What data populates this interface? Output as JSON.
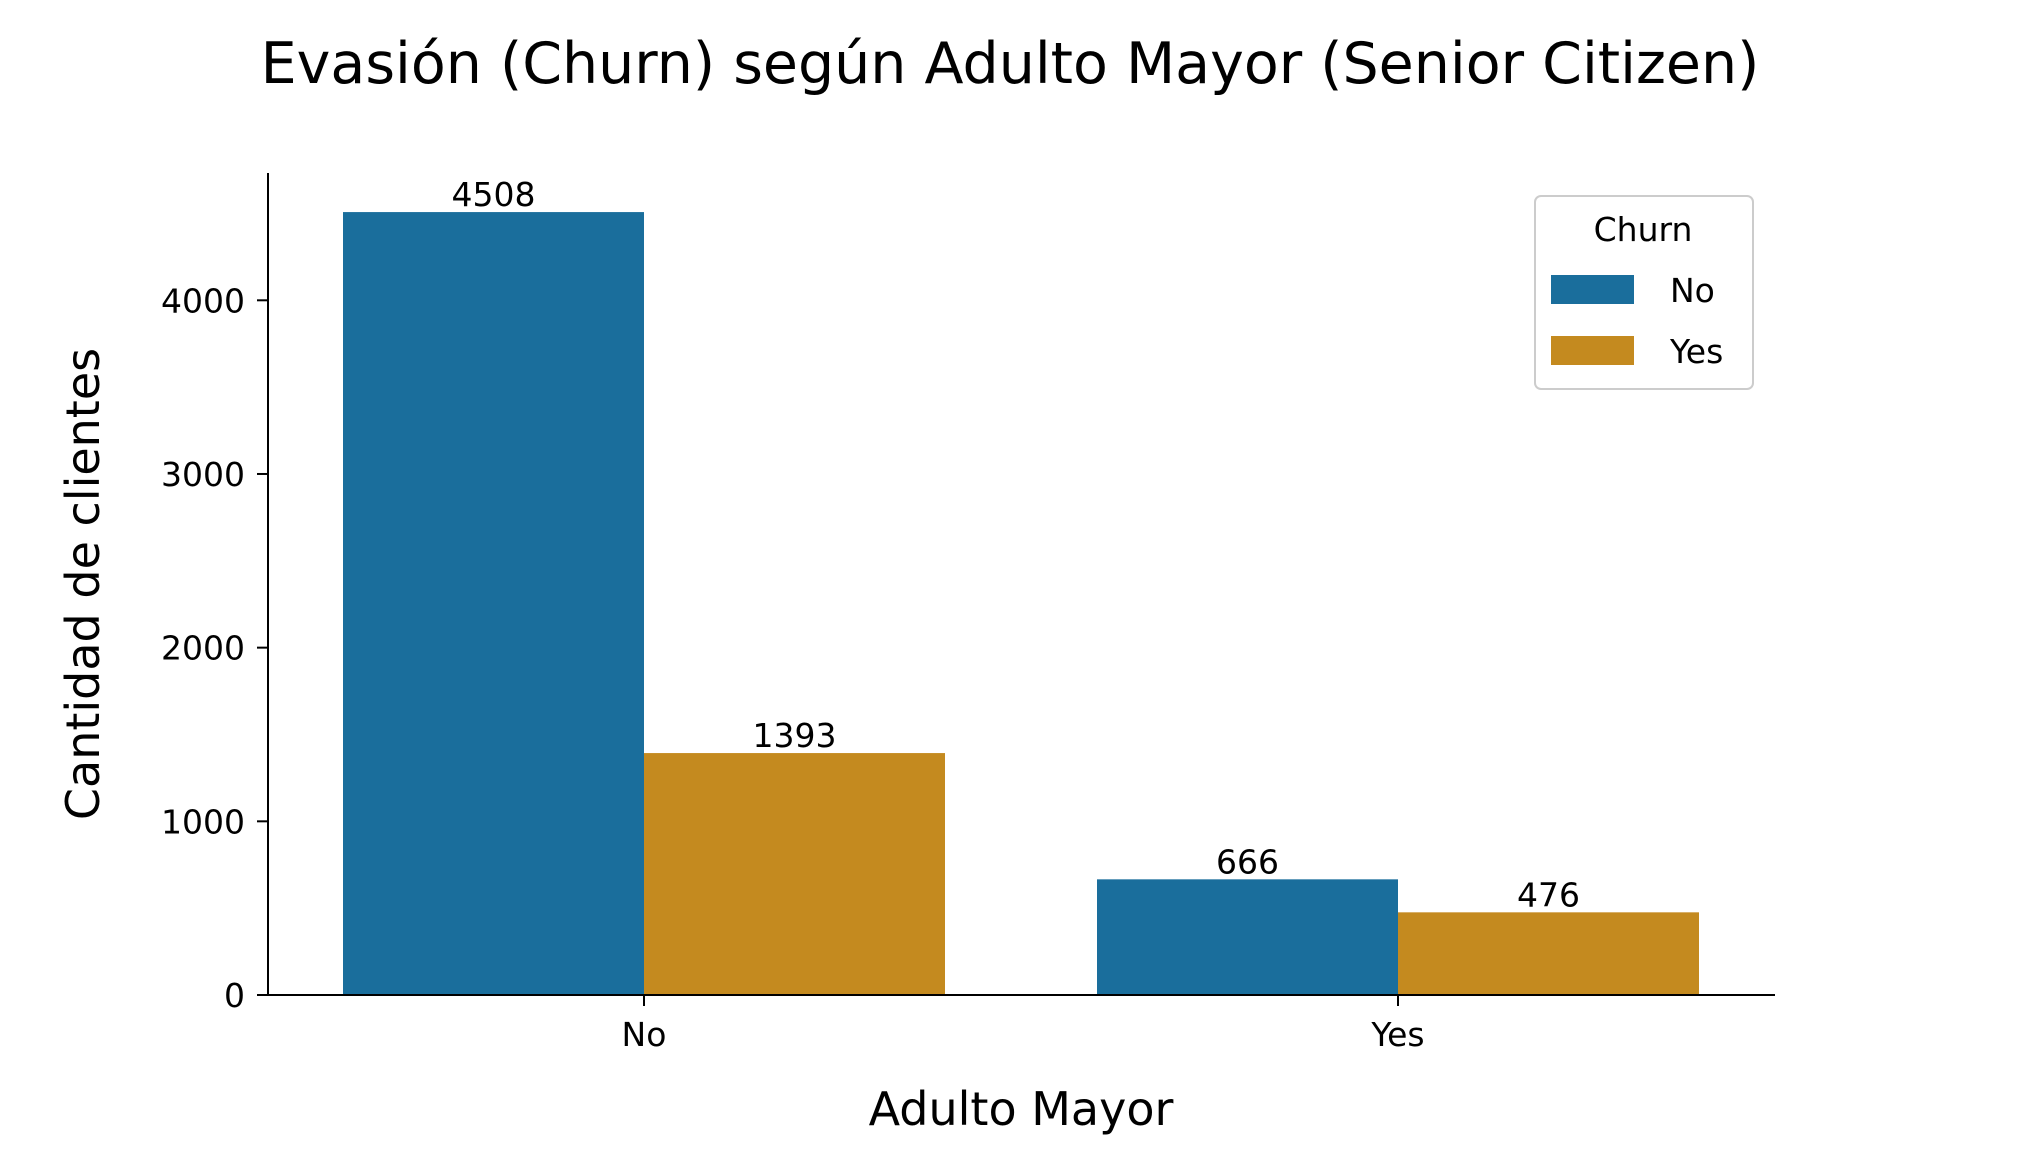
{
  "chart_data": {
    "type": "bar",
    "title": "Evasión (Churn) según Adulto Mayor (Senior Citizen)",
    "xlabel": "Adulto Mayor",
    "ylabel": "Cantidad de clientes",
    "categories": [
      "No",
      "Yes"
    ],
    "series": [
      {
        "name": "No",
        "values": [
          4508,
          666
        ],
        "color": "#1a6e9c"
      },
      {
        "name": "Yes",
        "values": [
          1393,
          476
        ],
        "color": "#c48a1f"
      }
    ],
    "data_labels": [
      [
        "4508",
        "666"
      ],
      [
        "1393",
        "476"
      ]
    ],
    "yticks": [
      0,
      1000,
      2000,
      3000,
      4000
    ],
    "ylim": [
      0,
      4733
    ],
    "grid": false,
    "legend": {
      "title": "Churn",
      "position": "top-right"
    }
  }
}
